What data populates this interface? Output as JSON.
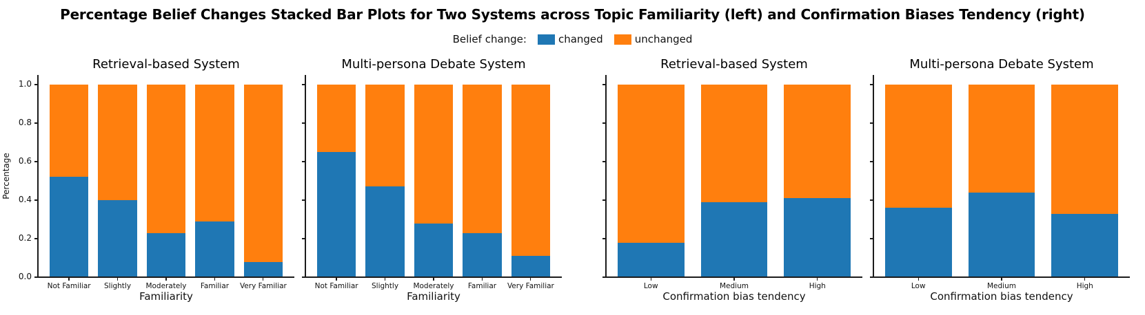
{
  "title": "Percentage Belief Changes Stacked Bar Plots for Two Systems across Topic Familiarity (left) and Confirmation Biases Tendency (right)",
  "legend": {
    "title": "Belief change:",
    "items": [
      {
        "label": "changed",
        "color": "#1f77b4"
      },
      {
        "label": "unchanged",
        "color": "#ff7f0e"
      }
    ]
  },
  "chart_data": [
    {
      "type": "bar",
      "stacked": true,
      "title": "Retrieval-based System",
      "xlabel": "Familiarity",
      "ylabel": "Percentage",
      "categories": [
        "Not Familiar",
        "Slightly",
        "Moderately",
        "Familiar",
        "Very Familiar"
      ],
      "series": [
        {
          "name": "changed",
          "color": "#1f77b4",
          "values": [
            0.52,
            0.4,
            0.23,
            0.29,
            0.08
          ]
        },
        {
          "name": "unchanged",
          "color": "#ff7f0e",
          "values": [
            0.48,
            0.6,
            0.77,
            0.71,
            0.92
          ]
        }
      ],
      "ylim": [
        0,
        1.05
      ],
      "yticks": [
        "0.0",
        "0.2",
        "0.4",
        "0.6",
        "0.8",
        "1.0"
      ],
      "ytick_labels_visible": true,
      "grid": false
    },
    {
      "type": "bar",
      "stacked": true,
      "title": "Multi-persona Debate System",
      "xlabel": "Familiarity",
      "ylabel": "",
      "categories": [
        "Not Familiar",
        "Slightly",
        "Moderately",
        "Familiar",
        "Very Familiar"
      ],
      "series": [
        {
          "name": "changed",
          "color": "#1f77b4",
          "values": [
            0.65,
            0.47,
            0.28,
            0.23,
            0.11
          ]
        },
        {
          "name": "unchanged",
          "color": "#ff7f0e",
          "values": [
            0.35,
            0.53,
            0.72,
            0.77,
            0.89
          ]
        }
      ],
      "ylim": [
        0,
        1.05
      ],
      "yticks": [
        "0.0",
        "0.2",
        "0.4",
        "0.6",
        "0.8",
        "1.0"
      ],
      "ytick_labels_visible": false,
      "grid": false
    },
    {
      "type": "bar",
      "stacked": true,
      "title": "Retrieval-based System",
      "xlabel": "Confirmation bias tendency",
      "ylabel": "",
      "categories": [
        "Low",
        "Medium",
        "High"
      ],
      "series": [
        {
          "name": "changed",
          "color": "#1f77b4",
          "values": [
            0.18,
            0.39,
            0.41
          ]
        },
        {
          "name": "unchanged",
          "color": "#ff7f0e",
          "values": [
            0.82,
            0.61,
            0.59
          ]
        }
      ],
      "ylim": [
        0,
        1.05
      ],
      "yticks": [
        "0.0",
        "0.2",
        "0.4",
        "0.6",
        "0.8",
        "1.0"
      ],
      "ytick_labels_visible": false,
      "grid": false
    },
    {
      "type": "bar",
      "stacked": true,
      "title": "Multi-persona Debate System",
      "xlabel": "Confirmation bias tendency",
      "ylabel": "",
      "categories": [
        "Low",
        "Medium",
        "High"
      ],
      "series": [
        {
          "name": "changed",
          "color": "#1f77b4",
          "values": [
            0.36,
            0.44,
            0.33
          ]
        },
        {
          "name": "unchanged",
          "color": "#ff7f0e",
          "values": [
            0.64,
            0.56,
            0.67
          ]
        }
      ],
      "ylim": [
        0,
        1.05
      ],
      "yticks": [
        "0.0",
        "0.2",
        "0.4",
        "0.6",
        "0.8",
        "1.0"
      ],
      "ytick_labels_visible": false,
      "grid": false
    }
  ]
}
